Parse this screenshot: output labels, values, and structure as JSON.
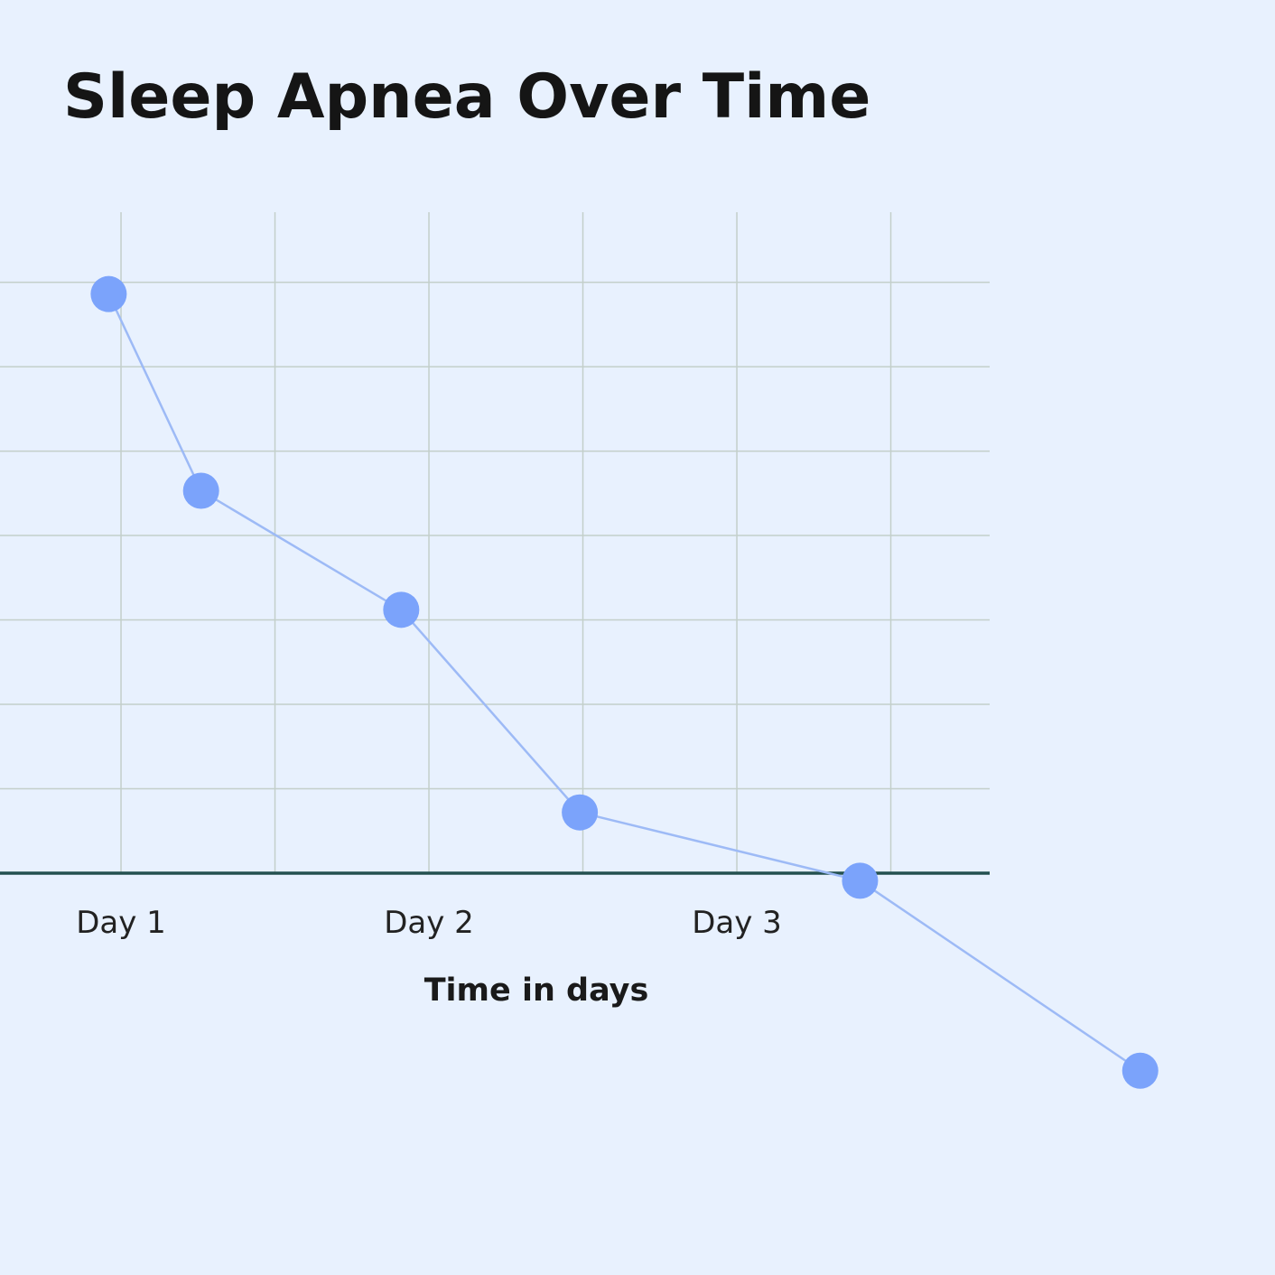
{
  "chart_data": {
    "type": "line",
    "title": "Sleep Apnea Over Time",
    "x_label": "Time in days",
    "x": [
      0.96,
      1.26,
      1.91,
      2.49,
      3.4,
      4.31
    ],
    "values": [
      6.86,
      4.53,
      3.12,
      0.72,
      -0.09,
      -2.34
    ],
    "color": "#7ba3fb",
    "line_color": "#9dbaf6",
    "xlim": [
      0.607,
      3.821
    ],
    "xticks": [
      {
        "value": 1,
        "label": "Day 1"
      },
      {
        "value": 1.5,
        "label": null
      },
      {
        "value": 2,
        "label": "Day 2"
      },
      {
        "value": 2.5,
        "label": null
      },
      {
        "value": 3,
        "label": "Day 3"
      },
      {
        "value": 3.5,
        "label": null
      }
    ],
    "ylim": [
      0,
      7.83
    ],
    "yticks": [
      0,
      1,
      2,
      3,
      4,
      5,
      6,
      7
    ],
    "show_ytick_labels": false,
    "grid": true
  }
}
